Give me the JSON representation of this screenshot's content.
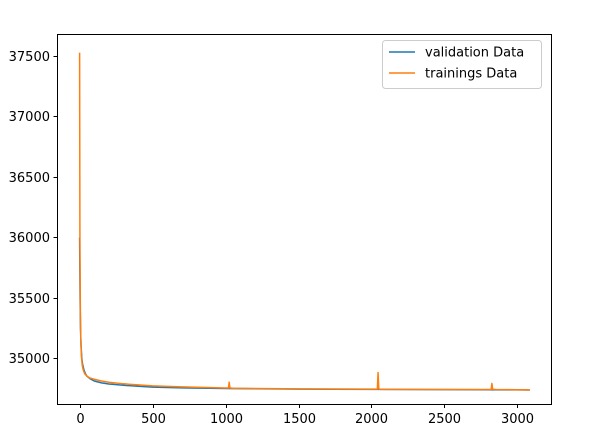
{
  "chart_data": {
    "type": "line",
    "title": "",
    "xlabel": "",
    "ylabel": "",
    "xlim": [
      -155,
      3230
    ],
    "ylim": [
      34620,
      37680
    ],
    "x_ticks": [
      0,
      500,
      1000,
      1500,
      2000,
      2500,
      3000
    ],
    "x_tick_labels": [
      "0",
      "500",
      "1000",
      "1500",
      "2000",
      "2500",
      "3000"
    ],
    "y_ticks": [
      35000,
      35500,
      36000,
      36500,
      37000,
      37500
    ],
    "y_tick_labels": [
      "35000",
      "35500",
      "36000",
      "36500",
      "37000",
      "37500"
    ],
    "grid": false,
    "legend_position": "top-right",
    "series": [
      {
        "name": "validation Data",
        "color": "#1f77b4",
        "x": [
          0,
          3,
          6,
          10,
          15,
          20,
          30,
          40,
          50,
          70,
          100,
          150,
          200,
          300,
          400,
          500,
          700,
          1000,
          1500,
          2000,
          2500,
          3000,
          3080
        ],
        "y": [
          35990,
          35500,
          35250,
          35100,
          35000,
          34950,
          34900,
          34870,
          34850,
          34830,
          34810,
          34795,
          34785,
          34775,
          34767,
          34760,
          34753,
          34748,
          34743,
          34741,
          34739,
          34737,
          34736
        ]
      },
      {
        "name": "trainings Data",
        "color": "#ff7f0e",
        "x": [
          0,
          2,
          5,
          8,
          12,
          18,
          25,
          35,
          50,
          70,
          100,
          150,
          200,
          300,
          400,
          500,
          700,
          1000,
          1020,
          1025,
          1030,
          1050,
          1500,
          2000,
          2040,
          2045,
          2050,
          2060,
          2500,
          2820,
          2825,
          2830,
          2850,
          3000,
          3080
        ],
        "y": [
          37520,
          36000,
          35400,
          35150,
          35020,
          34940,
          34900,
          34870,
          34850,
          34835,
          34825,
          34810,
          34800,
          34787,
          34778,
          34770,
          34762,
          34752,
          34752,
          34800,
          34752,
          34750,
          34745,
          34743,
          34743,
          34880,
          34745,
          34741,
          34740,
          34740,
          34790,
          34742,
          34740,
          34738,
          34737
        ]
      }
    ]
  }
}
